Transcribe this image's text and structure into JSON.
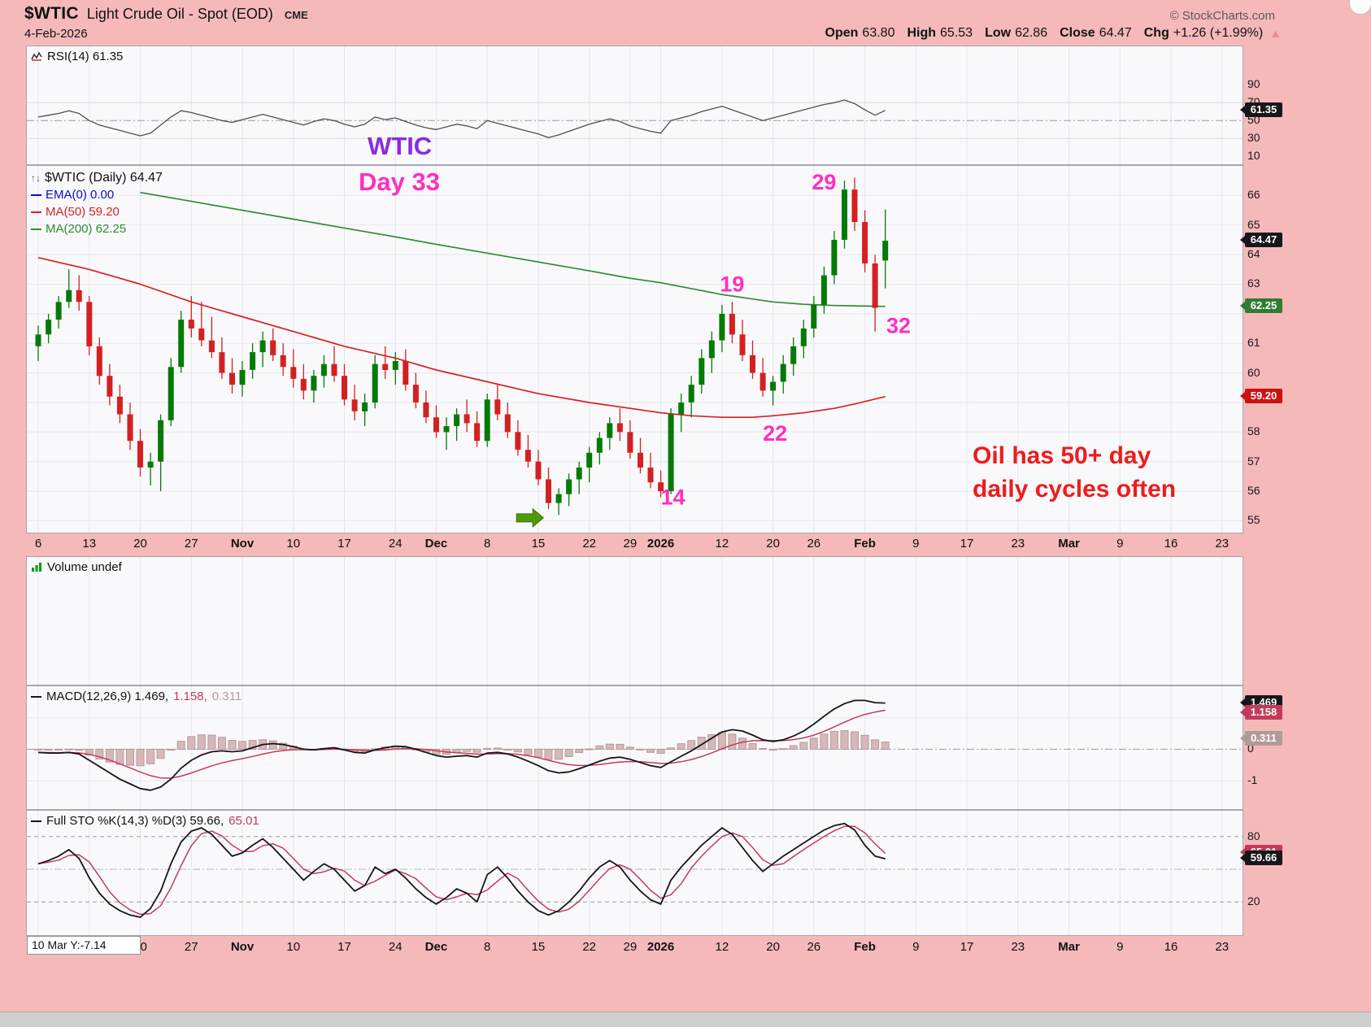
{
  "header": {
    "symbol": "$WTIC",
    "title": "Light Crude Oil - Spot (EOD)",
    "exchange": "CME",
    "copyright": "© StockCharts.com",
    "date": "4-Feb-2026",
    "quote": [
      {
        "label": "Open",
        "value": "63.80"
      },
      {
        "label": "High",
        "value": "65.53"
      },
      {
        "label": "Low",
        "value": "62.86"
      },
      {
        "label": "Close",
        "value": "64.47"
      },
      {
        "label": "Chg",
        "value": "+1.26 (+1.99%)"
      }
    ],
    "up_arrow": "▲"
  },
  "legends": {
    "rsi": "RSI(14) 61.35",
    "price_title": "$WTIC (Daily) 64.47",
    "ema": "EMA(0) 0.00",
    "ma50": "MA(50) 59.20",
    "ma200": "MA(200) 62.25",
    "volume": "Volume undef",
    "macd_main": "MACD(12,26,9) 1.469,",
    "macd_signal": "1.158,",
    "macd_hist": "0.311",
    "sto_main": "Full STO %K(14,3) %D(3) 59.66,",
    "sto_d": "65.01"
  },
  "annotations": {
    "wtic": "WTIC",
    "day": "Day 33",
    "note_line1": "Oil has 50+ day",
    "note_line2": "daily cycles often"
  },
  "footer": {
    "crosshair": "10 Mar Y:-7.14"
  },
  "chart_data": [
    {
      "id": "rsi",
      "type": "line",
      "title": "RSI(14)",
      "current": 61.35,
      "tag_text": "61.35",
      "ylim": [
        0,
        100
      ],
      "axis_labels": [
        90,
        70,
        50,
        30,
        10
      ],
      "guides_solid": [
        70,
        30
      ],
      "guides_dashdot": [
        50
      ],
      "values": [
        54,
        56,
        58,
        61,
        58,
        50,
        45,
        42,
        39,
        36,
        33,
        36,
        45,
        54,
        61,
        59,
        56,
        53,
        50,
        48,
        51,
        54,
        57,
        54,
        51,
        48,
        45,
        49,
        52,
        50,
        46,
        43,
        46,
        54,
        51,
        53,
        49,
        45,
        42,
        40,
        43,
        46,
        44,
        41,
        50,
        47,
        44,
        41,
        38,
        35,
        31,
        34,
        38,
        42,
        46,
        49,
        52,
        49,
        44,
        41,
        38,
        36,
        50,
        53,
        56,
        60,
        63,
        66,
        62,
        58,
        54,
        50,
        53,
        56,
        59,
        62,
        65,
        68,
        70,
        73,
        69,
        62,
        56,
        61.35
      ]
    },
    {
      "id": "price",
      "type": "candlestick",
      "title": "$WTIC (Daily)",
      "last_close": 64.47,
      "ylim": [
        54.6,
        67.0
      ],
      "up_color": "#067a06",
      "down_color": "#d42020",
      "ema_color": "#0b0bd0",
      "ma50_color": "#d92121",
      "ma200_color": "#2e8b2e",
      "axis_labels": [
        66,
        65,
        64,
        63,
        61,
        60,
        58,
        57,
        56,
        55
      ],
      "price_tags": [
        {
          "text": "64.47",
          "value": 64.47,
          "color": "#17171b"
        },
        {
          "text": "62.25",
          "value": 62.25,
          "color": "#2e7d32"
        },
        {
          "text": "59.20",
          "value": 59.2,
          "color": "#cc1111"
        }
      ],
      "ticks": [
        {
          "i": 0,
          "t": "6"
        },
        {
          "i": 5,
          "t": "13"
        },
        {
          "i": 10,
          "t": "20"
        },
        {
          "i": 15,
          "t": "27"
        },
        {
          "i": 20,
          "t": "Nov",
          "b": 1
        },
        {
          "i": 25,
          "t": "10"
        },
        {
          "i": 30,
          "t": "17"
        },
        {
          "i": 35,
          "t": "24"
        },
        {
          "i": 39,
          "t": "Dec",
          "b": 1
        },
        {
          "i": 44,
          "t": "8"
        },
        {
          "i": 49,
          "t": "15"
        },
        {
          "i": 54,
          "t": "22"
        },
        {
          "i": 58,
          "t": "29"
        },
        {
          "i": 61,
          "t": "2026",
          "b": 1
        },
        {
          "i": 67,
          "t": "12"
        },
        {
          "i": 72,
          "t": "20"
        },
        {
          "i": 76,
          "t": "26"
        },
        {
          "i": 81,
          "t": "Feb",
          "b": 1
        },
        {
          "i": 86,
          "t": "9"
        },
        {
          "i": 91,
          "t": "17"
        },
        {
          "i": 96,
          "t": "23"
        },
        {
          "i": 101,
          "t": "Mar",
          "b": 1
        },
        {
          "i": 106,
          "t": "9"
        },
        {
          "i": 111,
          "t": "16"
        },
        {
          "i": 116,
          "t": "23"
        }
      ],
      "ohlc": [
        [
          60.9,
          61.6,
          60.4,
          61.3
        ],
        [
          61.3,
          62.0,
          61.0,
          61.8
        ],
        [
          61.8,
          62.6,
          61.5,
          62.4
        ],
        [
          62.4,
          63.5,
          62.2,
          62.8
        ],
        [
          62.8,
          63.3,
          62.1,
          62.4
        ],
        [
          62.4,
          62.6,
          60.6,
          60.9
        ],
        [
          60.9,
          61.2,
          59.6,
          59.9
        ],
        [
          59.9,
          60.3,
          58.9,
          59.2
        ],
        [
          59.2,
          59.6,
          58.3,
          58.6
        ],
        [
          58.6,
          59.0,
          57.4,
          57.7
        ],
        [
          57.7,
          58.1,
          56.5,
          56.8
        ],
        [
          56.8,
          57.3,
          56.2,
          57.0
        ],
        [
          57.0,
          58.6,
          56.0,
          58.4
        ],
        [
          58.4,
          60.5,
          58.2,
          60.2
        ],
        [
          60.2,
          62.1,
          60.0,
          61.8
        ],
        [
          61.8,
          62.6,
          61.2,
          61.5
        ],
        [
          61.5,
          62.4,
          60.9,
          61.1
        ],
        [
          61.1,
          61.9,
          60.5,
          60.7
        ],
        [
          60.7,
          61.2,
          59.8,
          60.0
        ],
        [
          60.0,
          60.5,
          59.3,
          59.6
        ],
        [
          59.6,
          60.4,
          59.2,
          60.1
        ],
        [
          60.1,
          61.0,
          59.8,
          60.7
        ],
        [
          60.7,
          61.4,
          60.2,
          61.1
        ],
        [
          61.1,
          61.5,
          60.4,
          60.6
        ],
        [
          60.6,
          61.0,
          59.9,
          60.2
        ],
        [
          60.2,
          60.8,
          59.5,
          59.8
        ],
        [
          59.8,
          60.3,
          59.1,
          59.4
        ],
        [
          59.4,
          60.1,
          59.0,
          59.9
        ],
        [
          59.9,
          60.6,
          59.5,
          60.3
        ],
        [
          60.3,
          60.9,
          59.7,
          59.9
        ],
        [
          59.9,
          60.3,
          58.9,
          59.1
        ],
        [
          59.1,
          59.6,
          58.4,
          58.7
        ],
        [
          58.7,
          59.3,
          58.2,
          59.0
        ],
        [
          59.0,
          60.6,
          58.8,
          60.3
        ],
        [
          60.3,
          60.9,
          59.8,
          60.1
        ],
        [
          60.1,
          60.7,
          59.6,
          60.4
        ],
        [
          60.4,
          60.8,
          59.4,
          59.6
        ],
        [
          59.6,
          60.0,
          58.8,
          59.0
        ],
        [
          59.0,
          59.4,
          58.3,
          58.5
        ],
        [
          58.5,
          58.9,
          57.8,
          58.0
        ],
        [
          58.0,
          58.5,
          57.4,
          58.2
        ],
        [
          58.2,
          58.8,
          57.7,
          58.6
        ],
        [
          58.6,
          59.1,
          58.0,
          58.3
        ],
        [
          58.3,
          58.7,
          57.5,
          57.7
        ],
        [
          57.7,
          59.3,
          57.5,
          59.1
        ],
        [
          59.1,
          59.6,
          58.4,
          58.6
        ],
        [
          58.6,
          59.0,
          57.8,
          58.0
        ],
        [
          58.0,
          58.4,
          57.2,
          57.4
        ],
        [
          57.4,
          57.9,
          56.8,
          57.0
        ],
        [
          57.0,
          57.4,
          56.2,
          56.4
        ],
        [
          56.4,
          56.8,
          55.4,
          55.6
        ],
        [
          55.6,
          56.1,
          55.2,
          55.9
        ],
        [
          55.9,
          56.6,
          55.5,
          56.4
        ],
        [
          56.4,
          57.0,
          55.9,
          56.8
        ],
        [
          56.8,
          57.5,
          56.3,
          57.3
        ],
        [
          57.3,
          58.0,
          56.9,
          57.8
        ],
        [
          57.8,
          58.5,
          57.4,
          58.3
        ],
        [
          58.3,
          58.8,
          57.7,
          58.0
        ],
        [
          58.0,
          58.4,
          57.1,
          57.3
        ],
        [
          57.3,
          57.8,
          56.6,
          56.8
        ],
        [
          56.8,
          57.3,
          56.1,
          56.3
        ],
        [
          56.3,
          56.7,
          55.8,
          56.0
        ],
        [
          56.0,
          58.8,
          55.9,
          58.6
        ],
        [
          58.6,
          59.3,
          58.0,
          59.0
        ],
        [
          59.0,
          59.9,
          58.5,
          59.6
        ],
        [
          59.6,
          60.8,
          59.3,
          60.5
        ],
        [
          60.5,
          61.4,
          60.0,
          61.1
        ],
        [
          61.1,
          62.3,
          60.7,
          62.0
        ],
        [
          62.0,
          62.4,
          61.0,
          61.3
        ],
        [
          61.3,
          61.8,
          60.4,
          60.6
        ],
        [
          60.6,
          61.1,
          59.8,
          60.0
        ],
        [
          60.0,
          60.5,
          59.2,
          59.4
        ],
        [
          59.4,
          59.9,
          58.9,
          59.7
        ],
        [
          59.7,
          60.6,
          59.3,
          60.3
        ],
        [
          60.3,
          61.2,
          59.9,
          60.9
        ],
        [
          60.9,
          61.8,
          60.5,
          61.5
        ],
        [
          61.5,
          62.6,
          61.2,
          62.3
        ],
        [
          62.3,
          63.6,
          62.0,
          63.3
        ],
        [
          63.3,
          64.8,
          63.0,
          64.5
        ],
        [
          64.5,
          66.5,
          64.2,
          66.2
        ],
        [
          66.2,
          66.6,
          64.8,
          65.1
        ],
        [
          65.1,
          65.5,
          63.4,
          63.7
        ],
        [
          63.7,
          64.0,
          61.4,
          62.2
        ],
        [
          63.8,
          65.53,
          62.86,
          64.47
        ]
      ],
      "ma50": [
        [
          0,
          63.9
        ],
        [
          5,
          63.5
        ],
        [
          10,
          63.0
        ],
        [
          15,
          62.4
        ],
        [
          20,
          61.9
        ],
        [
          25,
          61.4
        ],
        [
          30,
          60.9
        ],
        [
          35,
          60.5
        ],
        [
          39,
          60.1
        ],
        [
          44,
          59.7
        ],
        [
          49,
          59.3
        ],
        [
          54,
          59.0
        ],
        [
          58,
          58.8
        ],
        [
          61,
          58.65
        ],
        [
          64,
          58.55
        ],
        [
          67,
          58.5
        ],
        [
          70,
          58.5
        ],
        [
          72,
          58.55
        ],
        [
          75,
          58.65
        ],
        [
          78,
          58.8
        ],
        [
          80,
          58.95
        ],
        [
          83,
          59.2
        ]
      ],
      "ma200": [
        [
          10,
          66.1
        ],
        [
          15,
          65.8
        ],
        [
          20,
          65.5
        ],
        [
          25,
          65.2
        ],
        [
          30,
          64.9
        ],
        [
          35,
          64.6
        ],
        [
          39,
          64.35
        ],
        [
          44,
          64.05
        ],
        [
          49,
          63.75
        ],
        [
          54,
          63.45
        ],
        [
          58,
          63.2
        ],
        [
          61,
          63.05
        ],
        [
          64,
          62.85
        ],
        [
          67,
          62.65
        ],
        [
          70,
          62.5
        ],
        [
          72,
          62.4
        ],
        [
          75,
          62.32
        ],
        [
          78,
          62.28
        ],
        [
          81,
          62.26
        ],
        [
          83,
          62.25
        ]
      ],
      "annotations": {
        "count_color": "#ff2fbf",
        "cycle_counts": [
          {
            "text": "14",
            "bar": 62.2,
            "price": 55.75
          },
          {
            "text": "22",
            "bar": 72.2,
            "price": 57.9
          },
          {
            "text": "19",
            "bar": 68,
            "price": 62.95
          },
          {
            "text": "29",
            "bar": 77,
            "price": 66.4
          },
          {
            "text": "32",
            "bar": 84.3,
            "price": 61.55
          }
        ],
        "arrow": {
          "bar": 49.5,
          "price": 55.1
        }
      }
    },
    {
      "id": "volume",
      "type": "bar",
      "title": "Volume undef",
      "values": []
    },
    {
      "id": "macd",
      "type": "line",
      "title": "MACD(12,26,9)",
      "signal_period": 9,
      "current_values": [
        1.469,
        1.158,
        0.311
      ],
      "ylim": [
        -1.9,
        2.0
      ],
      "axis_labels": [
        0,
        -1
      ],
      "signal_color": "#c23b5a",
      "hist_label_color": "#bb9a9a",
      "tags": [
        {
          "text": "1.469",
          "value": 1.469,
          "color": "#17171b"
        },
        {
          "text": "1.158",
          "value": 1.158,
          "color": "#c23b5a"
        },
        {
          "text": "0.311",
          "value": 0.311,
          "color": "#b39a9a"
        }
      ],
      "macd": [
        -0.1,
        -0.12,
        -0.12,
        -0.1,
        -0.15,
        -0.35,
        -0.55,
        -0.75,
        -0.95,
        -1.1,
        -1.25,
        -1.3,
        -1.2,
        -0.95,
        -0.6,
        -0.35,
        -0.18,
        -0.08,
        -0.05,
        -0.08,
        -0.05,
        0.05,
        0.15,
        0.18,
        0.15,
        0.08,
        0.0,
        -0.02,
        0.02,
        0.05,
        -0.02,
        -0.1,
        -0.12,
        -0.02,
        0.05,
        0.1,
        0.08,
        0.0,
        -0.1,
        -0.2,
        -0.25,
        -0.22,
        -0.2,
        -0.25,
        -0.12,
        -0.1,
        -0.15,
        -0.25,
        -0.38,
        -0.52,
        -0.68,
        -0.75,
        -0.72,
        -0.62,
        -0.5,
        -0.38,
        -0.28,
        -0.25,
        -0.32,
        -0.42,
        -0.52,
        -0.58,
        -0.4,
        -0.22,
        -0.05,
        0.15,
        0.35,
        0.55,
        0.62,
        0.58,
        0.45,
        0.3,
        0.25,
        0.3,
        0.42,
        0.58,
        0.8,
        1.05,
        1.28,
        1.45,
        1.55,
        1.55,
        1.48,
        1.469
      ]
    },
    {
      "id": "sto",
      "type": "line",
      "title": "Full STO %K(14,3) %D(3)",
      "d_period": 3,
      "current_values": [
        59.66,
        65.01
      ],
      "ylim": [
        0,
        100
      ],
      "axis_labels": [
        80,
        20
      ],
      "guides_dashed": [
        80,
        20
      ],
      "guides_dashdot": [
        50
      ],
      "signal_color": "#c23b5a",
      "tags": [
        {
          "text": "65.01",
          "value": 65.01,
          "color": "#c23b5a"
        },
        {
          "text": "59.66",
          "value": 59.66,
          "color": "#17171b"
        }
      ],
      "k": [
        55,
        58,
        62,
        68,
        60,
        42,
        28,
        18,
        12,
        8,
        6,
        14,
        30,
        55,
        75,
        85,
        88,
        82,
        72,
        62,
        65,
        72,
        78,
        70,
        60,
        50,
        40,
        48,
        55,
        50,
        40,
        30,
        35,
        52,
        46,
        50,
        42,
        32,
        24,
        18,
        24,
        32,
        28,
        20,
        45,
        52,
        42,
        30,
        20,
        12,
        8,
        12,
        20,
        30,
        42,
        52,
        58,
        52,
        40,
        30,
        22,
        18,
        40,
        52,
        62,
        72,
        80,
        88,
        82,
        70,
        58,
        48,
        55,
        62,
        68,
        74,
        80,
        86,
        90,
        92,
        86,
        72,
        62,
        59.66
      ]
    }
  ]
}
